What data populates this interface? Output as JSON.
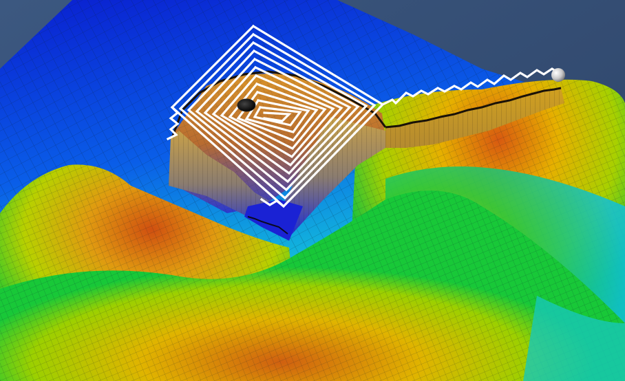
{
  "scene": {
    "background_color": "#334c70",
    "colormap": [
      "#0a1fd6",
      "#0a6cf0",
      "#10c6d2",
      "#10c83a",
      "#b8d000",
      "#e0b800",
      "#e06a10",
      "#c83a10"
    ],
    "path_color": "#ffffff",
    "start_marker_color": "#111111",
    "end_marker_color": "#d8d8d8"
  }
}
